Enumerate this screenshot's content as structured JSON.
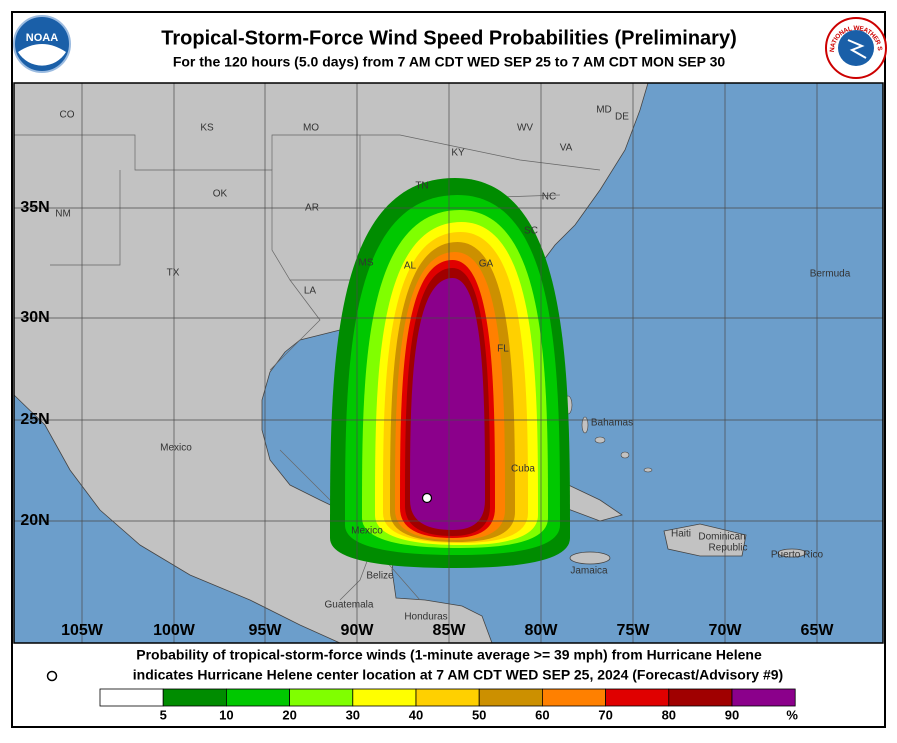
{
  "header": {
    "title": "Tropical-Storm-Force Wind Speed Probabilities (Preliminary)",
    "subtitle": "For the 120 hours (5.0 days) from 7 AM CDT WED SEP 25 to 7 AM CDT MON SEP 30"
  },
  "logos": {
    "noaa": "NOAA",
    "nws": "NATIONAL WEATHER SERVICE"
  },
  "map": {
    "place_labels": [
      "CO",
      "KS",
      "MO",
      "WV",
      "MD",
      "DE",
      "KY",
      "VA",
      "TN",
      "NC",
      "OK",
      "AR",
      "SC",
      "NM",
      "TX",
      "MS",
      "AL",
      "GA",
      "LA",
      "FL",
      "Bermuda",
      "Bahamas",
      "Mexico",
      "Cuba",
      "Mexico",
      "Haiti",
      "Dominican",
      "Republic",
      "Jamaica",
      "Puerto Rico",
      "Belize",
      "Guatemala",
      "Honduras"
    ],
    "latitude_labels": [
      "35N",
      "30N",
      "25N",
      "20N"
    ],
    "longitude_labels": [
      "105W",
      "100W",
      "95W",
      "90W",
      "85W",
      "80W",
      "75W",
      "70W",
      "65W"
    ]
  },
  "footer": {
    "line1": "Probability of tropical-storm-force winds (1-minute average >= 39 mph) from Hurricane Helene",
    "line2": "indicates Hurricane Helene center location at 7 AM CDT WED SEP 25, 2024 (Forecast/Advisory #9)"
  },
  "legend": {
    "colors": [
      "#ffffff",
      "#008c00",
      "#00c800",
      "#80ff00",
      "#ffff00",
      "#ffd000",
      "#cc9000",
      "#ff8000",
      "#e00000",
      "#a00000",
      "#8b008b"
    ],
    "labels": [
      5,
      10,
      20,
      30,
      40,
      50,
      60,
      70,
      80,
      90
    ],
    "unit": "%"
  }
}
